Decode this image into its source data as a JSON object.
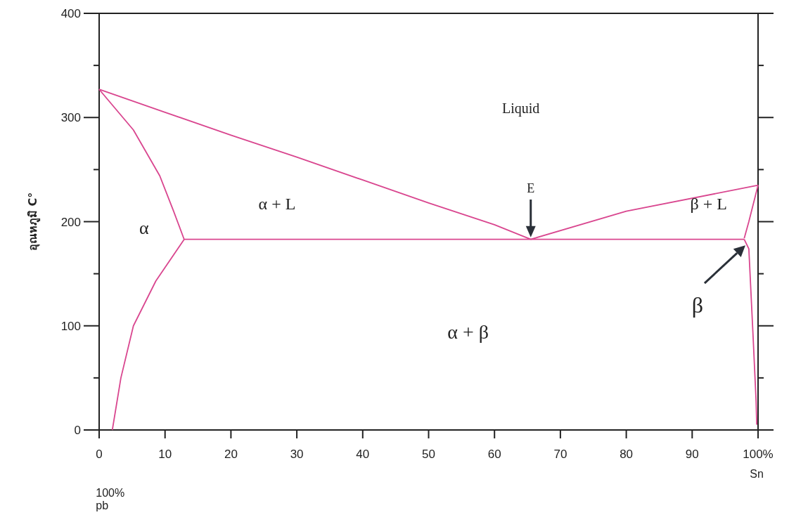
{
  "chart_data": {
    "type": "line",
    "ylabel": "อุณหภูมิ C°",
    "xlim": [
      0,
      100
    ],
    "ylim": [
      0,
      400
    ],
    "xticks": [
      0,
      10,
      20,
      30,
      40,
      50,
      60,
      70,
      80,
      90,
      {
        "value": 100,
        "label": "100%"
      }
    ],
    "yticks": [
      0,
      {
        "value": 50,
        "label": null
      },
      100,
      {
        "value": 150,
        "label": null
      },
      200,
      {
        "value": 250,
        "label": null
      },
      300,
      {
        "value": 350,
        "label": null
      },
      400
    ],
    "grid": false,
    "series": [
      {
        "color": "#d9468f",
        "x": [
          0,
          10,
          20,
          30,
          40,
          50,
          60,
          65.5
        ],
        "values": [
          327,
          305,
          283,
          262,
          240,
          218,
          197,
          183
        ]
      },
      {
        "color": "#d9468f",
        "x": [
          0,
          5.2,
          9.2,
          11.3,
          12.9
        ],
        "values": [
          327,
          288,
          244,
          210,
          183
        ]
      },
      {
        "color": "#d9468f",
        "x": [
          12.9,
          8.6,
          5.2,
          3.3,
          2
        ],
        "values": [
          183,
          143,
          100,
          50,
          0
        ]
      },
      {
        "color": "#d9468f",
        "x": [
          12.9,
          97.9
        ],
        "values": [
          183,
          183
        ]
      },
      {
        "color": "#d9468f",
        "x": [
          65.5,
          80,
          100
        ],
        "values": [
          183,
          210,
          235
        ]
      },
      {
        "color": "#d9468f",
        "x": [
          100,
          98.6,
          97.9
        ],
        "values": [
          235,
          200,
          184
        ]
      },
      {
        "color": "#d9468f",
        "x": [
          97.9,
          98.6,
          99.2,
          99.7,
          99.8
        ],
        "values": [
          183,
          174,
          96,
          28,
          5
        ]
      }
    ],
    "annotations": [
      "α",
      "α + L",
      "Liquid",
      "β + L",
      "α + β",
      "E",
      {
        "text": "β",
        "x": 98.5,
        "y": 180
      },
      "100%\npb",
      "Sn"
    ]
  }
}
